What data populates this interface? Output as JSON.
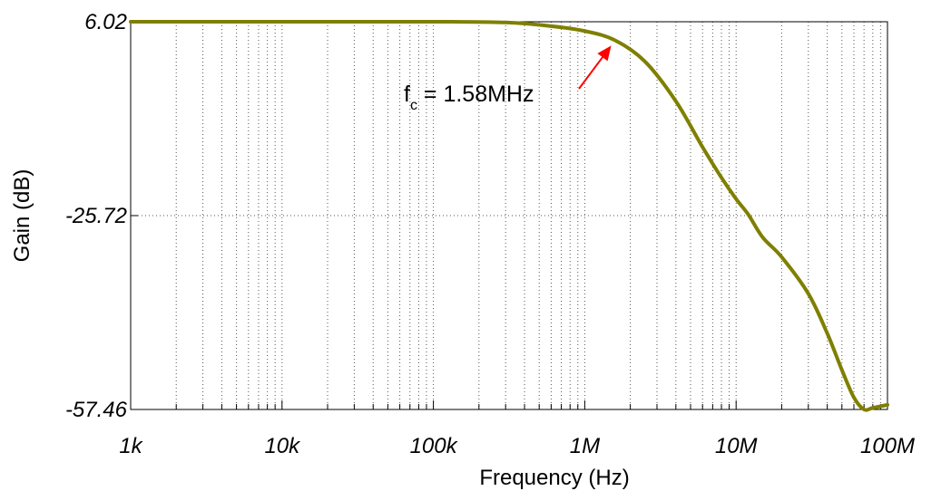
{
  "chart_data": {
    "type": "line",
    "xlabel": "Frequency (Hz)",
    "ylabel": "Gain (dB)",
    "x_scale": "log",
    "xlim": [
      1000,
      100000000
    ],
    "ylim": [
      -57.46,
      6.02
    ],
    "x_tick_labels": [
      "1k",
      "10k",
      "100k",
      "1M",
      "10M",
      "100M"
    ],
    "x_ticks": [
      1000,
      10000,
      100000,
      1000000,
      10000000,
      100000000
    ],
    "y_tick_labels": [
      "6.02",
      "-25.72",
      "-57.46"
    ],
    "y_ticks": [
      6.02,
      -25.72,
      -57.46
    ],
    "grid": true,
    "series_color": "#7f7f00",
    "annotation": {
      "label": "f",
      "label_sub": "c",
      "label_rest": " = 1.58MHz",
      "x": 1580000,
      "y": 3.0,
      "color": "#ff0000"
    },
    "series": [
      {
        "x": [
          1000,
          10000,
          100000,
          300000,
          600000,
          1000000,
          1580000,
          2500000,
          4000000,
          6000000,
          8000000,
          10000000,
          12000000,
          15000000,
          20000000,
          30000000,
          40000000,
          50000000,
          60000000,
          70000000,
          80000000,
          100000000
        ],
        "y": [
          6.02,
          6.02,
          6.02,
          5.9,
          5.3,
          4.5,
          3.0,
          -0.5,
          -7,
          -14.5,
          -19.5,
          -23.0,
          -25.5,
          -29.3,
          -32.5,
          -38.5,
          -45.0,
          -51.0,
          -55.5,
          -57.46,
          -57.2,
          -56.7
        ]
      }
    ]
  }
}
